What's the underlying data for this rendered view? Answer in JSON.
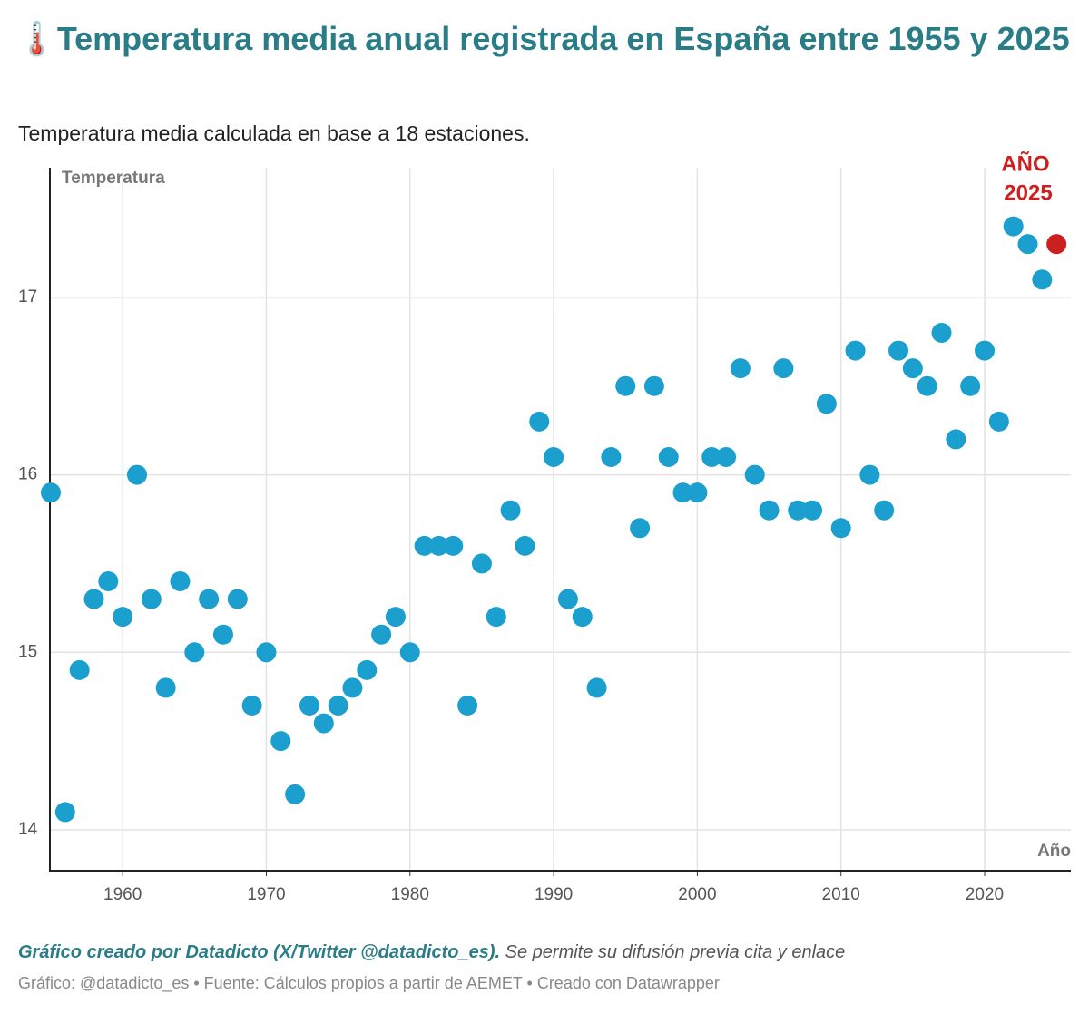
{
  "chart_data": {
    "type": "scatter",
    "title": "🌡️Temperatura media anual registrada en España entre 1955 y 2025",
    "subtitle": "Temperatura media calculada en base a 18 estaciones.",
    "x_label": "Año",
    "y_label": "Temperatura",
    "annotation": [
      "AÑO",
      "2025"
    ],
    "series": [
      {
        "color": "#1a9fcf",
        "x": [
          1955,
          1956,
          1957,
          1958,
          1959,
          1960,
          1961,
          1962,
          1963,
          1964,
          1965,
          1966,
          1967,
          1968,
          1969,
          1970,
          1971,
          1972,
          1973,
          1974,
          1975,
          1976,
          1977,
          1978,
          1979,
          1980,
          1981,
          1982,
          1983,
          1984,
          1985,
          1986,
          1987,
          1988,
          1989,
          1990,
          1991,
          1992,
          1993,
          1994,
          1995,
          1996,
          1997,
          1998,
          1999,
          2000,
          2001,
          2002,
          2003,
          2004,
          2005,
          2006,
          2007,
          2008,
          2009,
          2010,
          2011,
          2012,
          2013,
          2014,
          2015,
          2016,
          2017,
          2018,
          2019,
          2020,
          2021,
          2022,
          2023,
          2024
        ],
        "values": [
          15.9,
          14.1,
          14.9,
          15.3,
          15.4,
          15.2,
          16.0,
          15.3,
          14.8,
          15.4,
          15.0,
          15.3,
          15.1,
          15.3,
          14.7,
          15.0,
          14.5,
          14.2,
          14.7,
          14.6,
          14.7,
          14.8,
          14.9,
          15.1,
          15.2,
          15.0,
          15.6,
          15.6,
          15.6,
          14.7,
          15.5,
          15.2,
          15.8,
          15.6,
          16.3,
          16.1,
          15.3,
          15.2,
          14.8,
          16.1,
          16.5,
          15.7,
          16.5,
          16.1,
          15.9,
          15.9,
          16.1,
          16.1,
          16.6,
          16.0,
          15.8,
          16.6,
          15.8,
          15.8,
          16.4,
          15.7,
          16.7,
          16.0,
          15.8,
          16.7,
          16.6,
          16.5,
          16.8,
          16.2,
          16.5,
          16.7,
          16.3,
          17.4,
          17.3,
          17.1
        ]
      },
      {
        "color": "#cc1f1f",
        "x": [
          2025
        ],
        "values": [
          17.3
        ]
      }
    ],
    "xlim": [
      1955,
      2026
    ],
    "ylim": [
      13.77,
      17.73
    ],
    "xticks": [
      1960,
      1970,
      1980,
      1990,
      2000,
      2010,
      2020
    ],
    "yticks": [
      14,
      15,
      16,
      17
    ],
    "grid": true
  },
  "footer": {
    "credit": "Gráfico creado por Datadicto (X/Twitter @datadicto_es).",
    "note": " Se permite su difusión previa cita y enlace",
    "source": "Gráfico: @datadicto_es • Fuente: Cálculos propios a partir de AEMET • Creado con Datawrapper"
  }
}
